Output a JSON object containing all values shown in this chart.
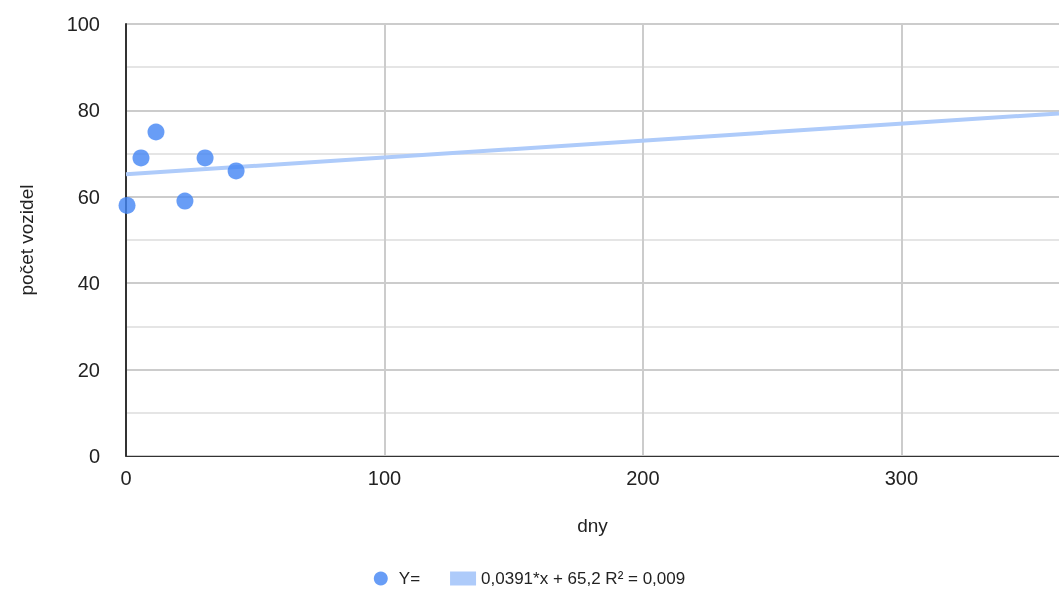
{
  "chart_data": {
    "type": "scatter",
    "xlabel": "dny",
    "ylabel": "počet vozidel",
    "series": [
      {
        "name": "Y=",
        "color": "#4285f4",
        "x": [
          0.4,
          5.8,
          11.6,
          22.8,
          30.6,
          42.6
        ],
        "values": [
          58,
          69,
          75,
          59,
          69,
          66
        ]
      },
      {
        "name": "0,0391*x + 65,2 R² = 0,009",
        "type": "line",
        "marker": "none",
        "color": "#aecbfa",
        "x": [
          0,
          361
        ],
        "values": [
          65.2,
          79.3
        ]
      }
    ],
    "xlim": [
      0,
      361
    ],
    "xticks": [
      0,
      100,
      200,
      300
    ],
    "ylim": [
      0,
      100
    ],
    "yticks": [
      0,
      20,
      40,
      60,
      80,
      100
    ],
    "grid": true,
    "legend": "bottom",
    "marker": "circle"
  }
}
